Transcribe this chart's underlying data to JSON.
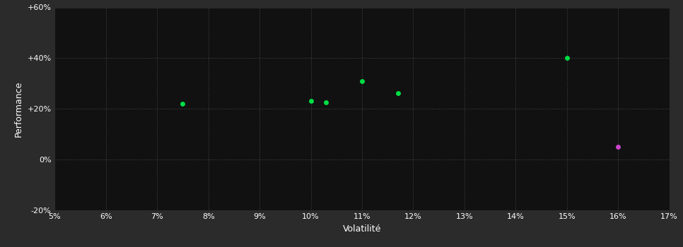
{
  "figure_bg_color": "#2b2b2b",
  "plot_bg_color": "#111111",
  "grid_color": "#555555",
  "xlabel": "Volatilité",
  "ylabel": "Performance",
  "xlim": [
    0.05,
    0.17
  ],
  "ylim": [
    -0.2,
    0.6
  ],
  "xticks": [
    0.05,
    0.06,
    0.07,
    0.08,
    0.09,
    0.1,
    0.11,
    0.12,
    0.13,
    0.14,
    0.15,
    0.16,
    0.17
  ],
  "yticks": [
    -0.2,
    0.0,
    0.2,
    0.4,
    0.6
  ],
  "ytick_labels": [
    "-20%",
    "0%",
    "+20%",
    "+40%",
    "+60%"
  ],
  "xtick_labels": [
    "5%",
    "6%",
    "7%",
    "8%",
    "9%",
    "10%",
    "11%",
    "12%",
    "13%",
    "14%",
    "15%",
    "16%",
    "17%"
  ],
  "green_points": [
    [
      0.075,
      0.22
    ],
    [
      0.1,
      0.23
    ],
    [
      0.103,
      0.225
    ],
    [
      0.11,
      0.31
    ],
    [
      0.117,
      0.26
    ],
    [
      0.15,
      0.4
    ]
  ],
  "magenta_points": [
    [
      0.16,
      0.05
    ]
  ],
  "green_color": "#00dd44",
  "magenta_color": "#cc44cc",
  "marker_size": 5,
  "text_color": "#ffffff",
  "tick_label_fontsize": 8,
  "axis_label_fontsize": 9,
  "grid_linestyle": ":",
  "grid_linewidth": 0.7,
  "grid_alpha": 0.8
}
